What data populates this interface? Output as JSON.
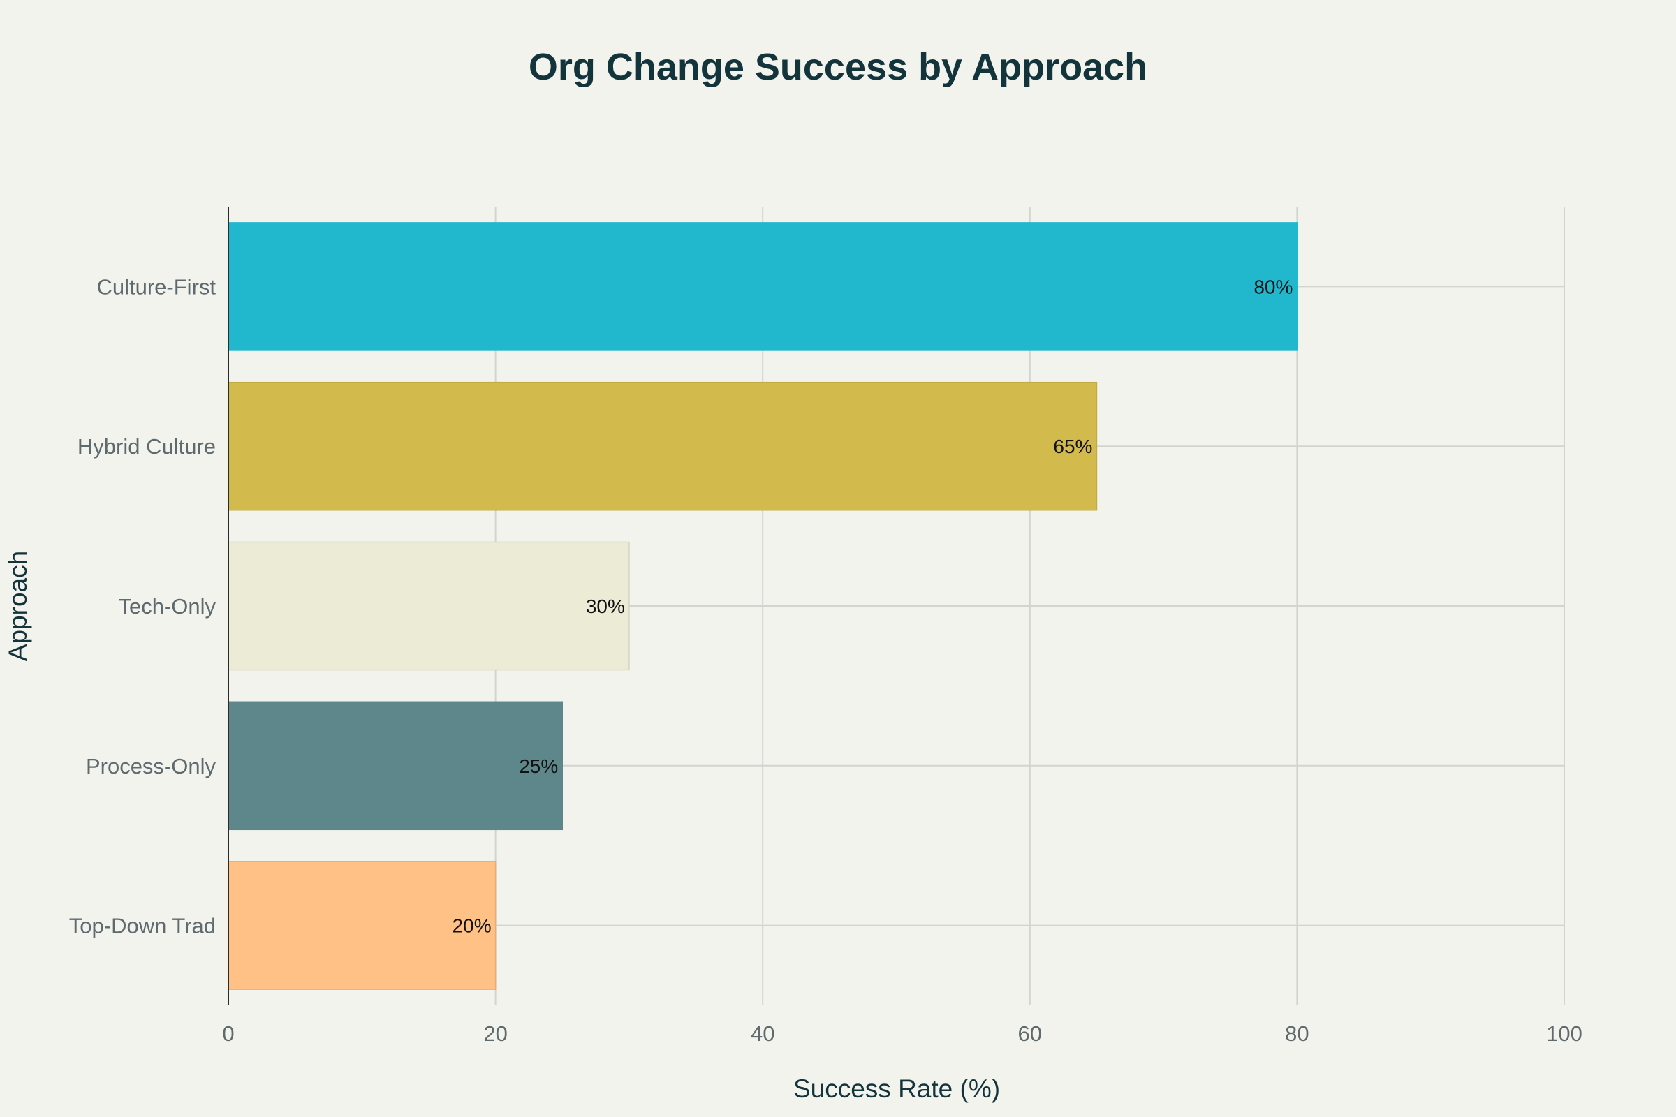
{
  "chart_data": {
    "type": "bar",
    "orientation": "horizontal",
    "title": "Org Change Success by Approach",
    "xlabel": "Success Rate (%)",
    "ylabel": "Approach",
    "xlim": [
      0,
      100
    ],
    "x_ticks": [
      0,
      20,
      40,
      60,
      80,
      100
    ],
    "grid": true,
    "categories": [
      "Culture-First",
      "Hybrid Culture",
      "Tech-Only",
      "Process-Only",
      "Top-Down Trad"
    ],
    "values": [
      80,
      65,
      30,
      25,
      20
    ],
    "data_labels": [
      "80%",
      "65%",
      "30%",
      "25%",
      "20%"
    ],
    "colors": [
      "#21b8cd",
      "#d2ba4c",
      "#ecebd6",
      "#5e878b",
      "#ffc185"
    ],
    "border_colors": [
      "#21b8cd",
      "#c2ab45",
      "#d6d4c2",
      "#5e878b",
      "#e3ac7a"
    ]
  }
}
